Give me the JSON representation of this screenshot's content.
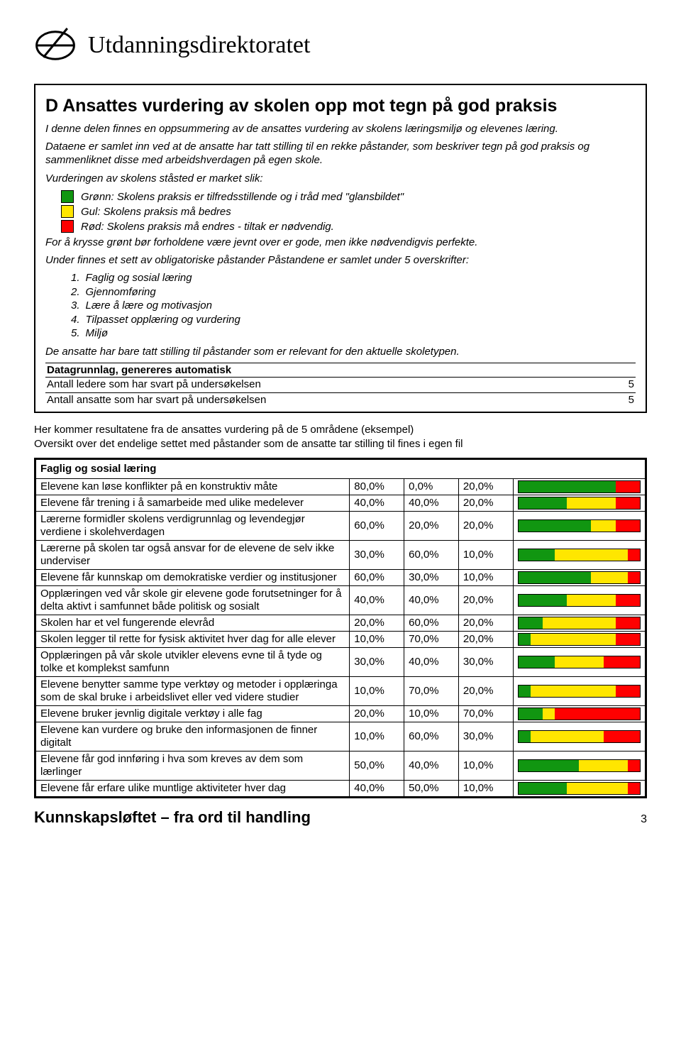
{
  "brand": "Utdanningsdirektoratet",
  "colors": {
    "green": "#119611",
    "yellow": "#ffe600",
    "red": "#ff0000",
    "border": "#000000"
  },
  "frame": {
    "title": "D Ansattes vurdering av skolen opp mot tegn på god praksis",
    "p1": "I denne delen finnes en oppsummering av de ansattes vurdering av skolens læringsmiljø og elevenes læring.",
    "p2": "Dataene er samlet inn ved at de ansatte har tatt stilling til en rekke påstander, som beskriver tegn på god praksis og sammenliknet disse med arbeidshverdagen på egen skole.",
    "p3": "Vurderingen av skolens ståsted er market slik:",
    "legend": {
      "green": "Grønn: Skolens praksis er tilfredsstillende og i tråd med \"glansbildet\"",
      "yellow": "Gul: Skolens praksis må bedres",
      "red": "Rød: Skolens praksis må endres - tiltak er nødvendig."
    },
    "p4": "For å krysse grønt bør forholdene være jevnt over er gode, men ikke nødvendigvis perfekte.",
    "p5": "Under finnes et sett av obligatoriske påstander Påstandene er samlet under 5 overskrifter:",
    "list": [
      "Faglig og sosial læring",
      "Gjennomføring",
      "Lære å lære og motivasjon",
      "Tilpasset opplæring og vurdering",
      "Miljø"
    ],
    "p6": "De ansatte har bare tatt stilling til påstander som er relevant for den aktuelle skoletypen.",
    "datagrunn_head": "Datagrunnlag, genereres automatisk",
    "dg1": {
      "label": "Antall ledere som har svart på undersøkelsen",
      "value": "5"
    },
    "dg2": {
      "label": "Antall ansatte som har svart på undersøkelsen",
      "value": "5"
    }
  },
  "mid1": "Her kommer resultatene fra de ansattes vurdering på de 5 områdene (eksempel)",
  "mid2": "Oversikt over det endelige settet med påstander som de ansatte tar stilling til fines i egen fil",
  "table": {
    "section": "Faglig og sosial læring",
    "rows": [
      {
        "label": "Elevene kan løse konflikter på en konstruktiv måte",
        "g": "80,0%",
        "y": "0,0%",
        "r": "20,0%",
        "gv": 80,
        "yv": 0,
        "rv": 20
      },
      {
        "label": "Elevene får trening i å samarbeide med ulike medelever",
        "g": "40,0%",
        "y": "40,0%",
        "r": "20,0%",
        "gv": 40,
        "yv": 40,
        "rv": 20
      },
      {
        "label": "Lærerne formidler skolens verdigrunnlag og levendegjør verdiene i skolehverdagen",
        "g": "60,0%",
        "y": "20,0%",
        "r": "20,0%",
        "gv": 60,
        "yv": 20,
        "rv": 20
      },
      {
        "label": "Lærerne på skolen tar også ansvar for de elevene de selv ikke underviser",
        "g": "30,0%",
        "y": "60,0%",
        "r": "10,0%",
        "gv": 30,
        "yv": 60,
        "rv": 10
      },
      {
        "label": "Elevene får kunnskap om demokratiske verdier og institusjoner",
        "g": "60,0%",
        "y": "30,0%",
        "r": "10,0%",
        "gv": 60,
        "yv": 30,
        "rv": 10
      },
      {
        "label": "Opplæringen ved vår skole gir elevene gode forutsetninger for å delta aktivt i samfunnet både politisk og sosialt",
        "g": "40,0%",
        "y": "40,0%",
        "r": "20,0%",
        "gv": 40,
        "yv": 40,
        "rv": 20
      },
      {
        "label": "Skolen har et vel fungerende elevråd",
        "g": "20,0%",
        "y": "60,0%",
        "r": "20,0%",
        "gv": 20,
        "yv": 60,
        "rv": 20
      },
      {
        "label": "Skolen legger til rette for fysisk aktivitet hver dag for alle elever",
        "g": "10,0%",
        "y": "70,0%",
        "r": "20,0%",
        "gv": 10,
        "yv": 70,
        "rv": 20
      },
      {
        "label": "Opplæringen på vår skole utvikler elevens evne til å tyde og tolke et komplekst samfunn",
        "g": "30,0%",
        "y": "40,0%",
        "r": "30,0%",
        "gv": 30,
        "yv": 40,
        "rv": 30
      },
      {
        "label": "Elevene benytter samme type verktøy og metoder i opplæringa som de skal bruke i arbeidslivet eller ved videre studier",
        "g": "10,0%",
        "y": "70,0%",
        "r": "20,0%",
        "gv": 10,
        "yv": 70,
        "rv": 20
      },
      {
        "label": "Elevene bruker jevnlig digitale verktøy i alle fag",
        "g": "20,0%",
        "y": "10,0%",
        "r": "70,0%",
        "gv": 20,
        "yv": 10,
        "rv": 70
      },
      {
        "label": "Elevene kan vurdere og bruke den informasjonen de finner digitalt",
        "g": "10,0%",
        "y": "60,0%",
        "r": "30,0%",
        "gv": 10,
        "yv": 60,
        "rv": 30
      },
      {
        "label": "Elevene får god innføring i hva som kreves av dem som lærlinger",
        "g": "50,0%",
        "y": "40,0%",
        "r": "10,0%",
        "gv": 50,
        "yv": 40,
        "rv": 10
      },
      {
        "label": "Elevene får erfare ulike muntlige aktiviteter hver dag",
        "g": "40,0%",
        "y": "50,0%",
        "r": "10,0%",
        "gv": 40,
        "yv": 50,
        "rv": 10
      }
    ]
  },
  "footer": {
    "title": "Kunnskapsløftet – fra ord til handling",
    "page": "3"
  }
}
